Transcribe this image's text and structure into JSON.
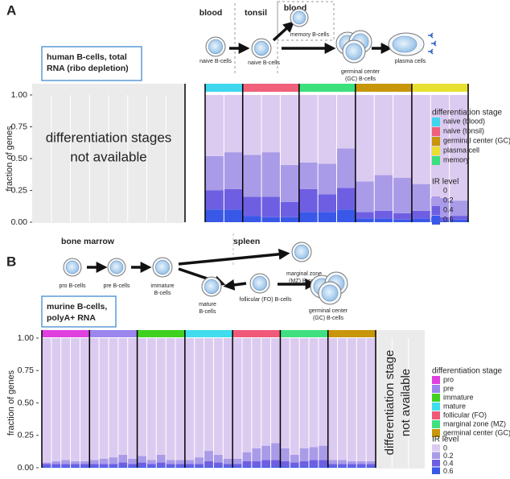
{
  "chart_data": [
    {
      "type": "stacked-bar",
      "panel_label": "A",
      "ylabel": "fraction of genes",
      "ylim": [
        0,
        1
      ],
      "yticks": [
        {
          "value": 0,
          "label": "0.00"
        },
        {
          "value": 0.25,
          "label": "0.25"
        },
        {
          "value": 0.5,
          "label": "0.50"
        },
        {
          "value": 0.75,
          "label": "0.75"
        },
        {
          "value": 1,
          "label": "1.00"
        }
      ],
      "not_available": [
        "differentiation stages",
        "not available"
      ],
      "categories": [
        null,
        null,
        null,
        null,
        null,
        null,
        null,
        null,
        null,
        null,
        null,
        null,
        null,
        null
      ],
      "strip_colors": [
        "#3fd6ee",
        "#3fd6ee",
        "#f0607a",
        "#f0607a",
        "#f0607a",
        "#3be07c",
        "#3be07c",
        "#3be07c",
        "#c8960a",
        "#c8960a",
        "#c8960a",
        "#e8e030",
        "#e8e030",
        "#e8e030"
      ],
      "stage_legend": {
        "title": "differentiation stage",
        "items": [
          {
            "name": "naive (blood)",
            "color": "#3fd6ee"
          },
          {
            "name": "naive (tonsil)",
            "color": "#f0607a"
          },
          {
            "name": "germinal center (GC)",
            "color": "#c8960a"
          },
          {
            "name": "plasma cell",
            "color": "#e8e030"
          },
          {
            "name": "memory",
            "color": "#3be07c"
          }
        ]
      },
      "series_legend_title": "IR level",
      "series": [
        {
          "name": "0",
          "color": "#dccbf0",
          "values": [
            0.48,
            0.45,
            0.47,
            0.45,
            0.55,
            0.53,
            0.54,
            0.42,
            0.68,
            0.63,
            0.65,
            0.7,
            0.81,
            0.83
          ]
        },
        {
          "name": "0.2",
          "color": "#aa9be8",
          "values": [
            0.27,
            0.29,
            0.33,
            0.35,
            0.29,
            0.21,
            0.24,
            0.31,
            0.24,
            0.28,
            0.28,
            0.21,
            0.15,
            0.12
          ]
        },
        {
          "name": "0.4",
          "color": "#6e5fe2",
          "values": [
            0.15,
            0.16,
            0.15,
            0.16,
            0.12,
            0.18,
            0.14,
            0.17,
            0.05,
            0.06,
            0.05,
            0.06,
            0.03,
            0.03
          ]
        },
        {
          "name": "0.6",
          "color": "#3a58e8",
          "values": [
            0.1,
            0.1,
            0.05,
            0.04,
            0.04,
            0.08,
            0.08,
            0.1,
            0.03,
            0.03,
            0.02,
            0.03,
            0.01,
            0.02
          ]
        }
      ]
    },
    {
      "type": "stacked-bar",
      "panel_label": "B",
      "ylabel": "fraction of genes",
      "ylim": [
        0,
        1
      ],
      "yticks": [
        {
          "value": 0,
          "label": "0.00"
        },
        {
          "value": 0.25,
          "label": "0.25"
        },
        {
          "value": 0.5,
          "label": "0.50"
        },
        {
          "value": 0.75,
          "label": "0.75"
        },
        {
          "value": 1,
          "label": "1.00"
        }
      ],
      "not_available": [
        "differentiation stage",
        "not available"
      ],
      "categories": [
        null,
        null,
        null,
        null,
        null,
        null,
        null,
        null,
        null,
        null,
        null,
        null,
        null,
        null,
        null,
        null,
        null,
        null,
        null,
        null,
        null,
        null,
        null,
        null,
        null,
        null,
        null,
        null,
        null,
        null,
        null,
        null,
        null,
        null,
        null
      ],
      "strip_colors": [
        "#e040e0",
        "#e040e0",
        "#e040e0",
        "#e040e0",
        "#e040e0",
        "#9b86ee",
        "#9b86ee",
        "#9b86ee",
        "#9b86ee",
        "#9b86ee",
        "#40d020",
        "#40d020",
        "#40d020",
        "#40d020",
        "#40d020",
        "#40ddee",
        "#40ddee",
        "#40ddee",
        "#40ddee",
        "#40ddee",
        "#f05a78",
        "#f05a78",
        "#f05a78",
        "#f05a78",
        "#f05a78",
        "#40e080",
        "#40e080",
        "#40e080",
        "#40e080",
        "#40e080",
        "#c8960a",
        "#c8960a",
        "#c8960a",
        "#c8960a",
        "#c8960a"
      ],
      "stage_legend": {
        "title": "differentiation stage",
        "items": [
          {
            "name": "pro",
            "color": "#e040e0"
          },
          {
            "name": "pre",
            "color": "#9b86ee"
          },
          {
            "name": "immature",
            "color": "#40d020"
          },
          {
            "name": "mature",
            "color": "#40ddee"
          },
          {
            "name": "follicular (FO)",
            "color": "#f05a78"
          },
          {
            "name": "marginal zone (MZ)",
            "color": "#40e080"
          },
          {
            "name": "germinal center (GC)",
            "color": "#c8960a"
          }
        ]
      },
      "series_legend_title": "IR level",
      "series": [
        {
          "name": "0",
          "color": "#dccbf0",
          "values": [
            0.96,
            0.95,
            0.94,
            0.95,
            0.95,
            0.94,
            0.93,
            0.92,
            0.9,
            0.93,
            0.91,
            0.94,
            0.9,
            0.94,
            0.94,
            0.94,
            0.92,
            0.87,
            0.9,
            0.93,
            0.93,
            0.88,
            0.85,
            0.83,
            0.81,
            0.85,
            0.9,
            0.85,
            0.84,
            0.83,
            0.94,
            0.94,
            0.95,
            0.95,
            0.95
          ]
        },
        {
          "name": "0.2",
          "color": "#aa9be8",
          "values": [
            0.01,
            0.02,
            0.03,
            0.02,
            0.02,
            0.03,
            0.04,
            0.05,
            0.06,
            0.04,
            0.05,
            0.03,
            0.06,
            0.03,
            0.03,
            0.03,
            0.05,
            0.08,
            0.06,
            0.04,
            0.04,
            0.07,
            0.1,
            0.11,
            0.13,
            0.1,
            0.06,
            0.1,
            0.1,
            0.11,
            0.03,
            0.03,
            0.02,
            0.02,
            0.02
          ]
        },
        {
          "name": "0.4",
          "color": "#6e5fe2",
          "values": [
            0.02,
            0.02,
            0.02,
            0.02,
            0.02,
            0.02,
            0.02,
            0.02,
            0.03,
            0.02,
            0.03,
            0.02,
            0.03,
            0.02,
            0.02,
            0.02,
            0.02,
            0.04,
            0.03,
            0.02,
            0.02,
            0.04,
            0.04,
            0.05,
            0.05,
            0.04,
            0.03,
            0.04,
            0.05,
            0.05,
            0.02,
            0.02,
            0.02,
            0.02,
            0.02
          ]
        },
        {
          "name": "0.6",
          "color": "#3a58e8",
          "values": [
            0.01,
            0.01,
            0.01,
            0.01,
            0.01,
            0.01,
            0.01,
            0.01,
            0.01,
            0.01,
            0.01,
            0.01,
            0.01,
            0.01,
            0.01,
            0.01,
            0.01,
            0.01,
            0.01,
            0.01,
            0.01,
            0.01,
            0.01,
            0.01,
            0.01,
            0.01,
            0.01,
            0.01,
            0.01,
            0.01,
            0.01,
            0.01,
            0.01,
            0.01,
            0.01
          ]
        }
      ]
    }
  ],
  "schematics": [
    {
      "box": [
        "human B-cells, total",
        "RNA (ribo depletion)"
      ],
      "headers": [
        "blood",
        "tonsil",
        "blood"
      ],
      "cells": [
        {
          "label": [
            "naive B-cells"
          ]
        },
        {
          "label": [
            "naive B-cells"
          ]
        },
        {
          "label": [
            "memory B-cells"
          ]
        },
        {
          "label": [
            "germinal center",
            "(GC) B-cells"
          ]
        },
        {
          "label": [
            "plasma cells"
          ]
        }
      ]
    },
    {
      "box": [
        "murine B-cells,",
        "polyA+ RNA"
      ],
      "headers": [
        "bone marrow",
        "spleen"
      ],
      "cells": [
        {
          "label": [
            "pro B-cells"
          ]
        },
        {
          "label": [
            "pre B-cells"
          ]
        },
        {
          "label": [
            "immature",
            "B-cells"
          ]
        },
        {
          "label": [
            "marginal zone",
            "(MZ) B-cells"
          ]
        },
        {
          "label": [
            "follicular (FO) B-cells"
          ]
        },
        {
          "label": [
            "mature",
            "B-cells"
          ]
        },
        {
          "label": [
            "germinal center",
            "(GC) B-cells"
          ]
        }
      ]
    }
  ]
}
